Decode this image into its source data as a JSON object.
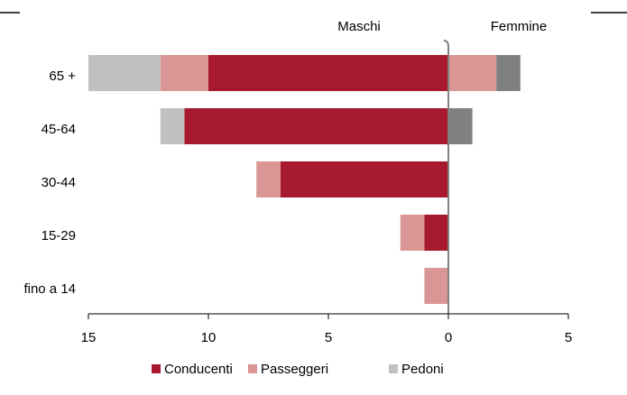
{
  "chart_data": {
    "type": "bar",
    "orientation": "horizontal",
    "stacked": true,
    "sides": [
      "Maschi",
      "Femmine"
    ],
    "categories": [
      "65 +",
      "45-64",
      "30-44",
      "15-29",
      "fino a 14"
    ],
    "series": [
      {
        "name": "Conducenti",
        "color": "#a6192e",
        "values_maschi": [
          10,
          11,
          7,
          1,
          0
        ],
        "values_femmine": [
          0,
          0,
          0,
          0,
          0
        ]
      },
      {
        "name": "Passeggeri",
        "color": "#d99694",
        "values_maschi": [
          2,
          0,
          1,
          1,
          1
        ],
        "values_femmine": [
          2,
          0,
          0,
          0,
          0
        ]
      },
      {
        "name": "Pedoni",
        "color": "#c0c0c0",
        "color_femmine": "#808080",
        "values_maschi": [
          3,
          1,
          0,
          0,
          0
        ],
        "values_femmine": [
          1,
          1,
          0,
          0,
          0
        ]
      }
    ],
    "xlim": [
      -15,
      5
    ],
    "xticks": [
      {
        "value": -15,
        "label": "15"
      },
      {
        "value": -10,
        "label": "10"
      },
      {
        "value": -5,
        "label": "5"
      },
      0,
      5
    ],
    "legend": "bottom"
  }
}
